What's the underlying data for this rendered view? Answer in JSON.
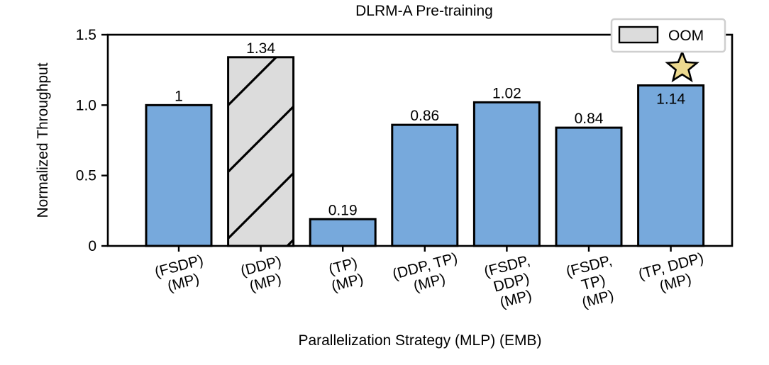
{
  "chart_data": {
    "type": "bar",
    "title": "DLRM-A Pre-training",
    "xlabel": "Parallelization Strategy (MLP) (EMB)",
    "ylabel": "Normalized Throughput",
    "ylim": [
      0,
      1.5
    ],
    "yticks": [
      0,
      0.5,
      1.0,
      1.5
    ],
    "ytick_labels": [
      "0",
      "0.5",
      "1.0",
      "1.5"
    ],
    "grid": false,
    "legend": {
      "position": "top-right",
      "entries": [
        {
          "label": "OOM",
          "color": "#dcdcdc",
          "hatch": true
        }
      ]
    },
    "bars": [
      {
        "label_lines": [
          "(FSDP)",
          "(MP)"
        ],
        "value": 1.0,
        "value_label": "1",
        "color": "#77a9dc",
        "oom": false,
        "best": false
      },
      {
        "label_lines": [
          "(DDP)",
          "(MP)"
        ],
        "value": 1.34,
        "value_label": "1.34",
        "color": "#dcdcdc",
        "oom": true,
        "best": false
      },
      {
        "label_lines": [
          "(TP)",
          "(MP)"
        ],
        "value": 0.19,
        "value_label": "0.19",
        "color": "#77a9dc",
        "oom": false,
        "best": false
      },
      {
        "label_lines": [
          "(DDP, TP)",
          "(MP)"
        ],
        "value": 0.86,
        "value_label": "0.86",
        "color": "#77a9dc",
        "oom": false,
        "best": false
      },
      {
        "label_lines": [
          "(FSDP,",
          "DDP)",
          "(MP)"
        ],
        "value": 1.02,
        "value_label": "1.02",
        "color": "#77a9dc",
        "oom": false,
        "best": false
      },
      {
        "label_lines": [
          "(FSDP,",
          "TP)",
          "(MP)"
        ],
        "value": 0.84,
        "value_label": "0.84",
        "color": "#77a9dc",
        "oom": false,
        "best": false
      },
      {
        "label_lines": [
          "(TP, DDP)",
          "(MP)"
        ],
        "value": 1.14,
        "value_label": "1.14",
        "color": "#77a9dc",
        "oom": false,
        "best": true
      }
    ],
    "star_color": "#ecd98f"
  }
}
